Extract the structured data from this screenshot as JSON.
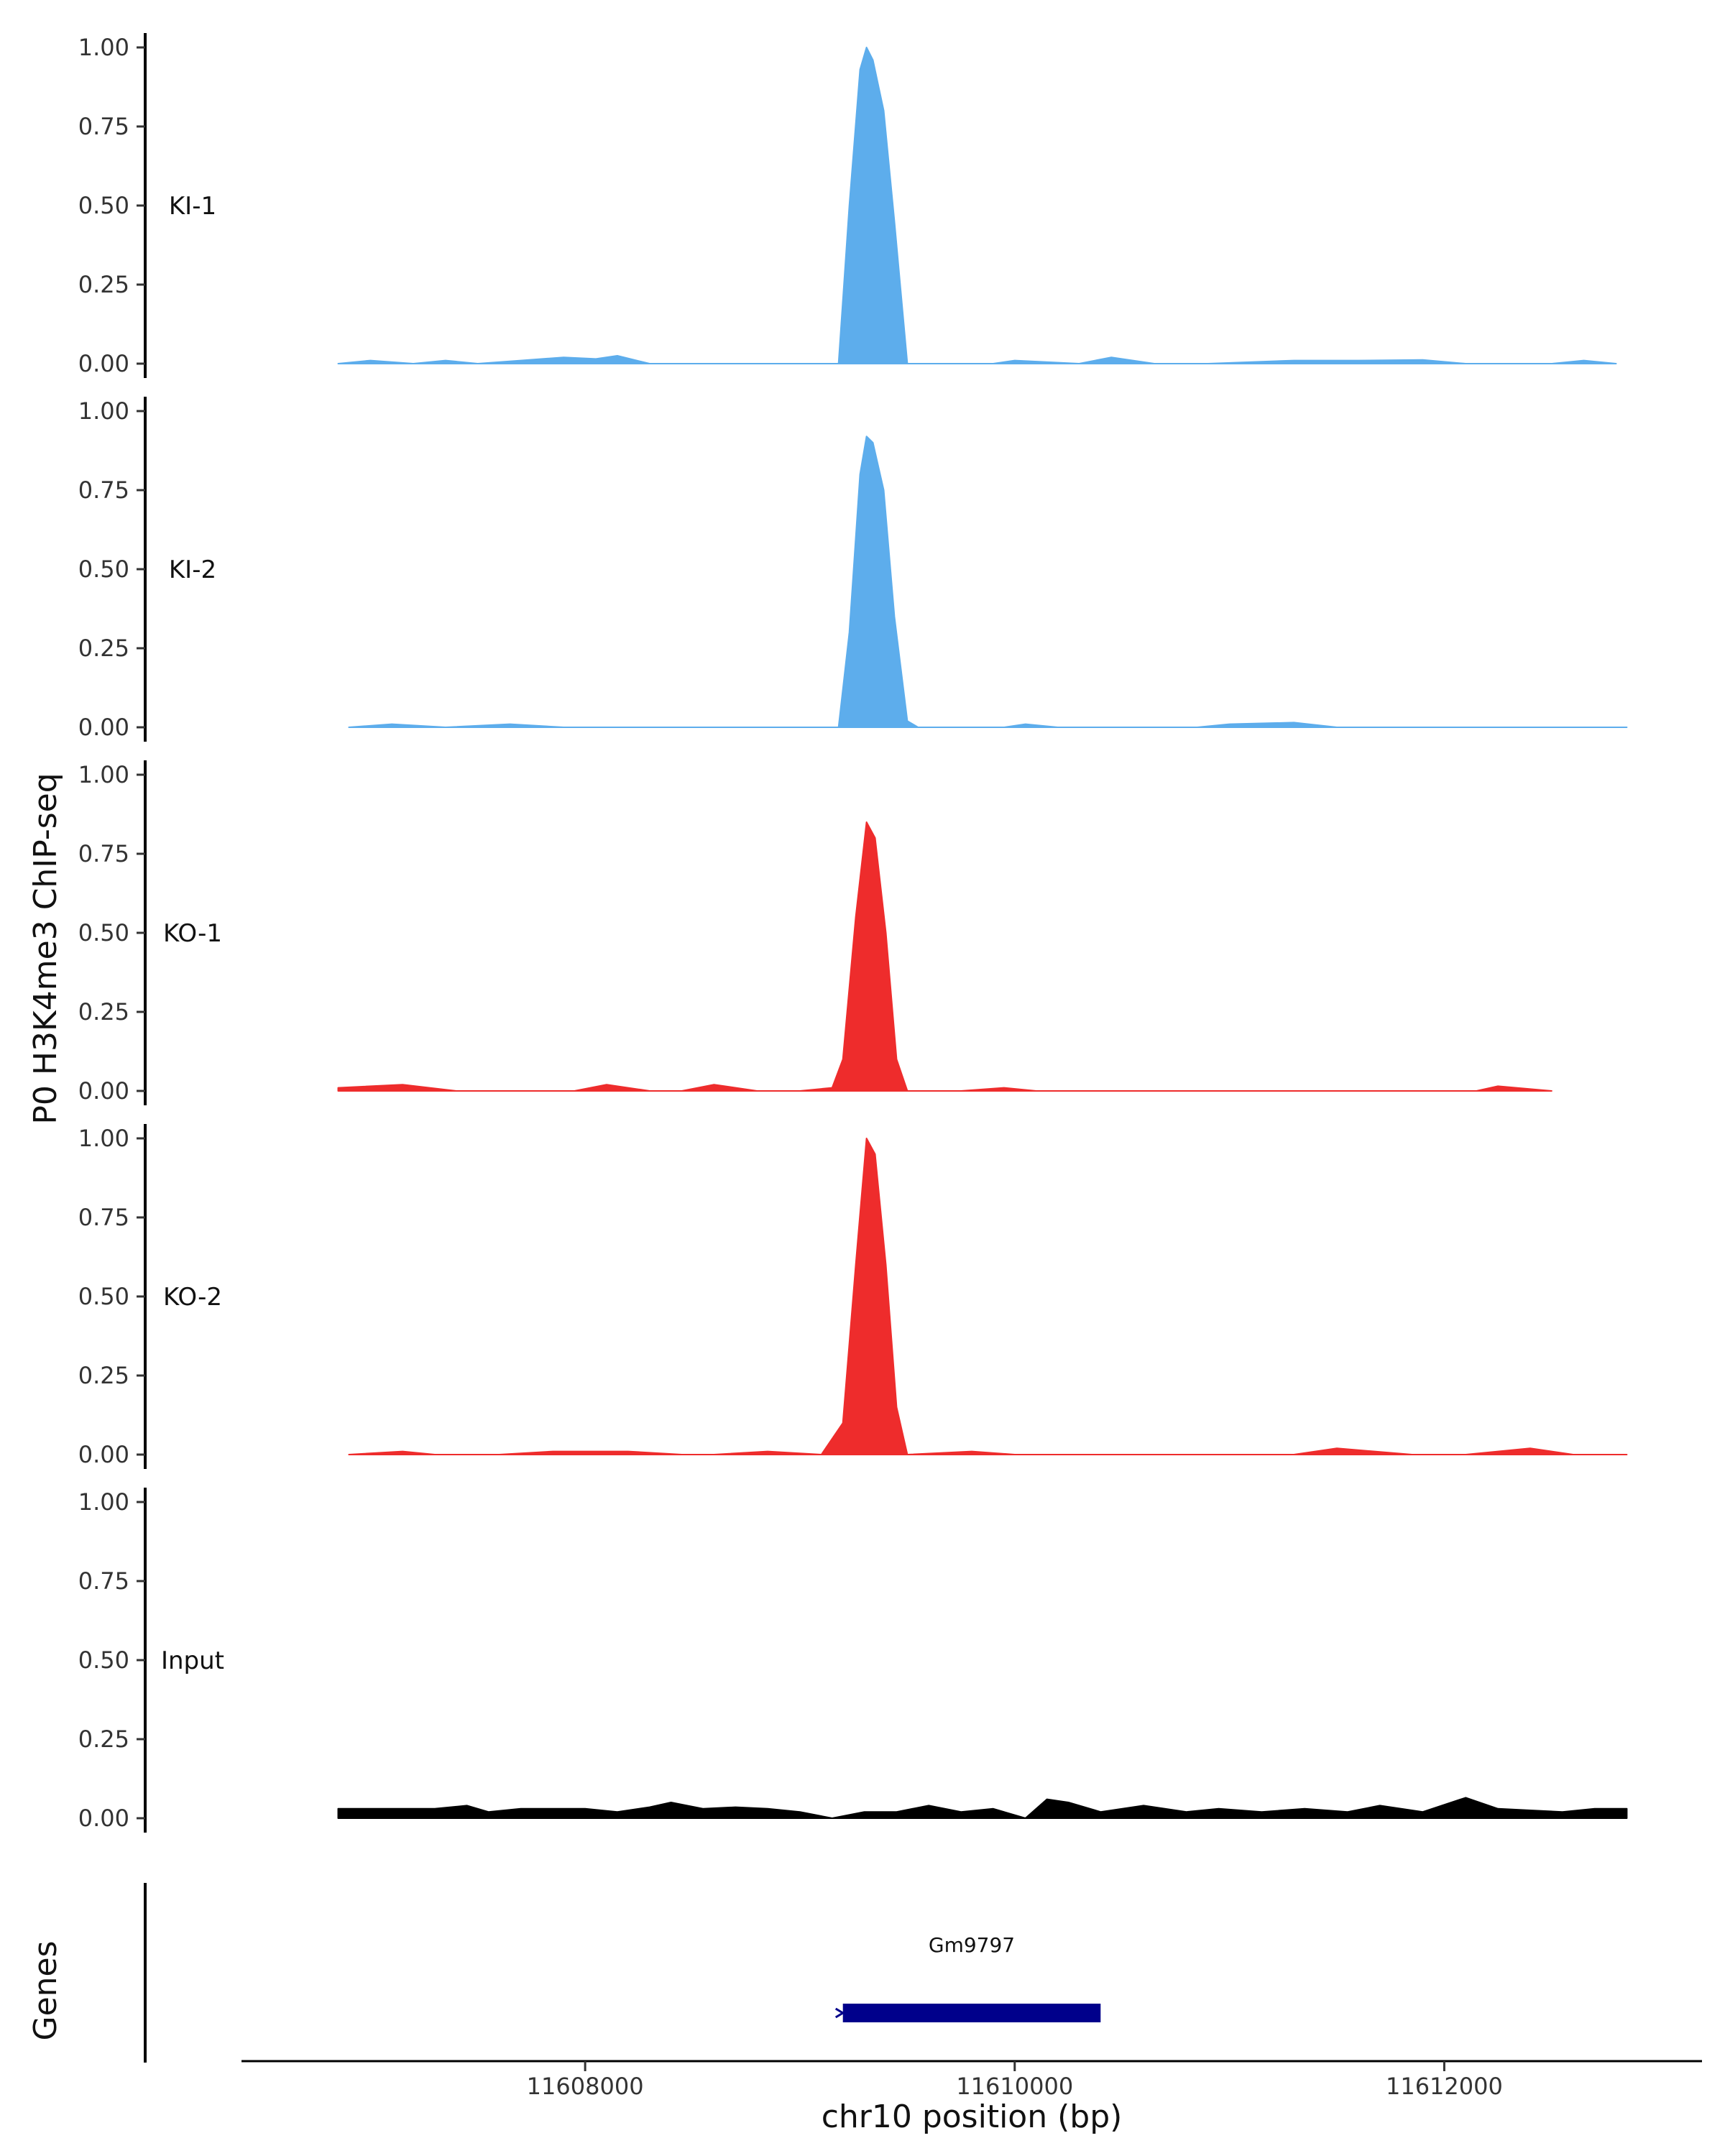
{
  "chart_data": {
    "type": "area",
    "title": "",
    "ylabel": "P0 H3K4me3 ChIP-seq",
    "xlabel": "chr10 position (bp)",
    "genes_label": "Genes",
    "xlim": [
      11606400,
      11613200
    ],
    "ylim": [
      0,
      1
    ],
    "x_ticks": [
      11608000,
      11610000,
      11612000
    ],
    "y_ticks": [
      0.0,
      0.25,
      0.5,
      0.75,
      1.0
    ],
    "y_tick_labels": [
      "0.00",
      "0.25",
      "0.50",
      "0.75",
      "1.00"
    ],
    "grid": false,
    "legend": "none",
    "tracks": [
      {
        "name": "KI-1",
        "color": "#5DADEC",
        "x": [
          11606850,
          11607000,
          11607200,
          11607350,
          11607500,
          11607700,
          11607900,
          11608050,
          11608150,
          11608300,
          11609180,
          11609230,
          11609280,
          11609310,
          11609340,
          11609390,
          11609440,
          11609500,
          11609900,
          11610000,
          11610300,
          11610450,
          11610650,
          11610900,
          11611300,
          11611600,
          11611900,
          11612100,
          11612500,
          11612650,
          11612800
        ],
        "y": [
          0.0,
          0.01,
          0.0,
          0.01,
          0.0,
          0.01,
          0.02,
          0.015,
          0.025,
          0.0,
          0.0,
          0.5,
          0.93,
          1.0,
          0.96,
          0.8,
          0.45,
          0.0,
          0.0,
          0.01,
          0.0,
          0.02,
          0.0,
          0.0,
          0.01,
          0.01,
          0.012,
          0.0,
          0.0,
          0.01,
          0.0
        ]
      },
      {
        "name": "KI-2",
        "color": "#5DADEC",
        "x": [
          11606900,
          11607100,
          11607350,
          11607650,
          11607900,
          11608300,
          11608550,
          11609180,
          11609230,
          11609280,
          11609310,
          11609340,
          11609390,
          11609440,
          11609500,
          11609550,
          11609950,
          11610050,
          11610200,
          11610850,
          11611000,
          11611300,
          11611500,
          11611650,
          11611850,
          11612000,
          11612250,
          11612850
        ],
        "y": [
          0.0,
          0.01,
          0.0,
          0.01,
          0.0,
          0.0,
          0.0,
          0.0,
          0.3,
          0.8,
          0.92,
          0.9,
          0.75,
          0.35,
          0.02,
          0.0,
          0.0,
          0.01,
          0.0,
          0.0,
          0.01,
          0.015,
          0.0,
          0.0,
          0.0,
          0.0,
          0.0,
          0.0
        ]
      },
      {
        "name": "KO-1",
        "color": "#EE2C2C",
        "x": [
          11606850,
          11607150,
          11607400,
          11607950,
          11608100,
          11608300,
          11608450,
          11608600,
          11608800,
          11609000,
          11609150,
          11609200,
          11609260,
          11609310,
          11609350,
          11609400,
          11609450,
          11609500,
          11609750,
          11609950,
          11610100,
          11612150,
          11612250,
          11612500
        ],
        "y": [
          0.01,
          0.02,
          0.0,
          0.0,
          0.02,
          0.0,
          0.0,
          0.02,
          0.0,
          0.0,
          0.01,
          0.1,
          0.55,
          0.85,
          0.8,
          0.5,
          0.1,
          0.0,
          0.0,
          0.01,
          0.0,
          0.0,
          0.015,
          0.0
        ]
      },
      {
        "name": "KO-2",
        "color": "#EE2C2C",
        "x": [
          11606900,
          11607150,
          11607300,
          11607600,
          11607850,
          11608200,
          11608450,
          11608600,
          11608850,
          11609100,
          11609200,
          11609260,
          11609310,
          11609350,
          11609400,
          11609450,
          11609500,
          11609800,
          11610000,
          11610150,
          11610600,
          11610850,
          11611300,
          11611500,
          11611850,
          11612100,
          11612400,
          11612600,
          11612850
        ],
        "y": [
          0.0,
          0.01,
          0.0,
          0.0,
          0.01,
          0.01,
          0.0,
          0.0,
          0.01,
          0.0,
          0.1,
          0.6,
          1.0,
          0.95,
          0.6,
          0.15,
          0.0,
          0.01,
          0.0,
          0.0,
          0.0,
          0.0,
          0.0,
          0.02,
          0.0,
          0.0,
          0.02,
          0.0,
          0.0
        ]
      },
      {
        "name": "Input",
        "color": "#000000",
        "x": [
          11606850,
          11607000,
          11607150,
          11607300,
          11607450,
          11607550,
          11607700,
          11607850,
          11608000,
          11608150,
          11608300,
          11608400,
          11608550,
          11608700,
          11608850,
          11609000,
          11609150,
          11609300,
          11609450,
          11609600,
          11609750,
          11609900,
          11610050,
          11610150,
          11610250,
          11610400,
          11610600,
          11610800,
          11610950,
          11611150,
          11611350,
          11611550,
          11611700,
          11611900,
          11612100,
          11612250,
          11612400,
          11612550,
          11612700,
          11612850
        ],
        "y": [
          0.03,
          0.03,
          0.03,
          0.03,
          0.04,
          0.02,
          0.03,
          0.03,
          0.03,
          0.02,
          0.035,
          0.05,
          0.03,
          0.035,
          0.03,
          0.02,
          0.0,
          0.02,
          0.02,
          0.04,
          0.02,
          0.03,
          0.0,
          0.06,
          0.05,
          0.02,
          0.04,
          0.02,
          0.03,
          0.02,
          0.03,
          0.02,
          0.04,
          0.02,
          0.065,
          0.03,
          0.025,
          0.02,
          0.03,
          0.03
        ]
      }
    ],
    "genes": [
      {
        "name": "Gm9797",
        "start": 11609200,
        "end": 11610400,
        "strand": "-",
        "color": "#00008B"
      }
    ]
  }
}
